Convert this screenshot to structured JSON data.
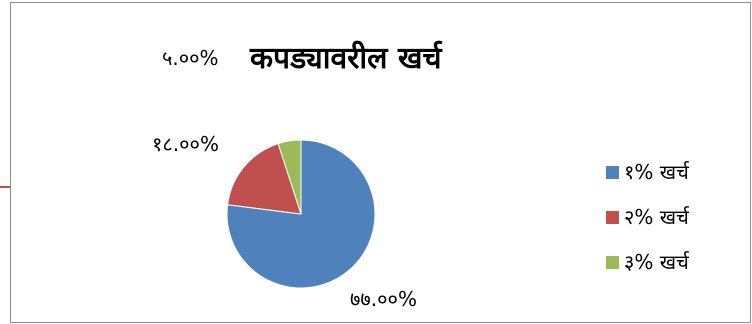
{
  "chart_data": {
    "type": "pie",
    "title": "कपड्यावरील खर्च",
    "categories": [
      "१% खर्च",
      "२% खर्च",
      "३% खर्च"
    ],
    "values": [
      77,
      18,
      5
    ],
    "data_labels": [
      "७७.००%",
      "१८.००%",
      "५.००%"
    ],
    "colors": [
      "#4f81bd",
      "#c0504d",
      "#9bbb59"
    ],
    "legend_position": "right"
  }
}
